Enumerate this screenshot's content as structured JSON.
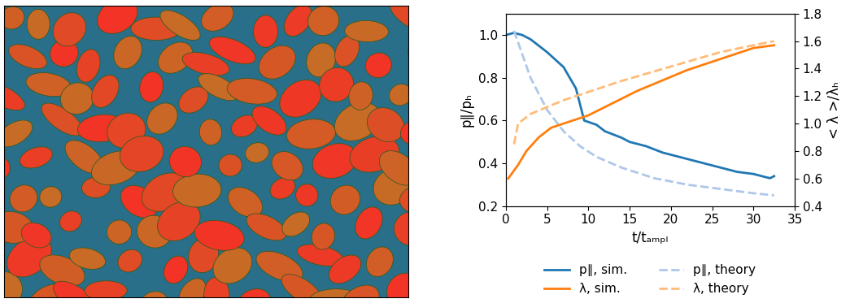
{
  "chart_data": {
    "type": "line",
    "x_label": "t/tₐₘₚₗ",
    "y_label": "p∥/pₕ",
    "y2_label": "< λ >/λₕ",
    "xlim": [
      0,
      35
    ],
    "xticks": [
      0,
      5,
      10,
      15,
      20,
      25,
      30,
      35
    ],
    "ylim": [
      0.2,
      1.1
    ],
    "yticks": [
      0.2,
      0.4,
      0.6,
      0.8,
      1.0
    ],
    "y2lim": [
      0.4,
      1.8
    ],
    "y2ticks": [
      0.4,
      0.6,
      0.8,
      1.0,
      1.2,
      1.4,
      1.6,
      1.8
    ],
    "legend": "lower center",
    "series": [
      {
        "name": "p∥, sim.",
        "color": "#1f77b4",
        "line_style": "solid",
        "x": [
          0,
          1,
          2,
          3,
          5,
          7,
          8.5,
          9.5,
          11,
          12,
          14,
          15,
          17,
          19,
          20,
          22,
          24,
          26,
          28,
          30,
          32,
          32.5
        ],
        "values": [
          1.0,
          1.01,
          1.0,
          0.98,
          0.92,
          0.85,
          0.75,
          0.6,
          0.58,
          0.55,
          0.52,
          0.5,
          0.48,
          0.45,
          0.44,
          0.42,
          0.4,
          0.38,
          0.36,
          0.35,
          0.33,
          0.34
        ]
      },
      {
        "name": "λ, sim.",
        "color": "#ff7f0e",
        "line_style": "solid",
        "axis": "y2",
        "x": [
          0.3,
          1.5,
          2.5,
          4,
          5.5,
          7,
          8.5,
          10,
          12,
          14,
          16,
          18,
          20,
          22,
          24,
          26,
          28,
          30,
          32.5
        ],
        "values": [
          0.6,
          0.7,
          0.8,
          0.9,
          0.97,
          1.0,
          1.03,
          1.06,
          1.12,
          1.18,
          1.24,
          1.29,
          1.34,
          1.39,
          1.43,
          1.47,
          1.51,
          1.55,
          1.57
        ]
      },
      {
        "name": "p∥, theory",
        "color": "#aec7e8",
        "line_style": "dashed",
        "x": [
          1,
          3,
          5,
          7,
          9,
          11,
          14,
          18,
          22,
          26,
          30,
          32.5
        ],
        "values": [
          1.02,
          0.8,
          0.65,
          0.55,
          0.48,
          0.43,
          0.38,
          0.33,
          0.3,
          0.28,
          0.26,
          0.25
        ]
      },
      {
        "name": "λ, theory",
        "color": "#ffbb78",
        "line_style": "dashed",
        "axis": "y2",
        "x": [
          1,
          1.5,
          3,
          5,
          7,
          9,
          11,
          14,
          18,
          22,
          26,
          30,
          32.5
        ],
        "values": [
          0.85,
          1.0,
          1.07,
          1.12,
          1.17,
          1.21,
          1.25,
          1.31,
          1.38,
          1.45,
          1.52,
          1.57,
          1.6
        ]
      }
    ]
  }
}
